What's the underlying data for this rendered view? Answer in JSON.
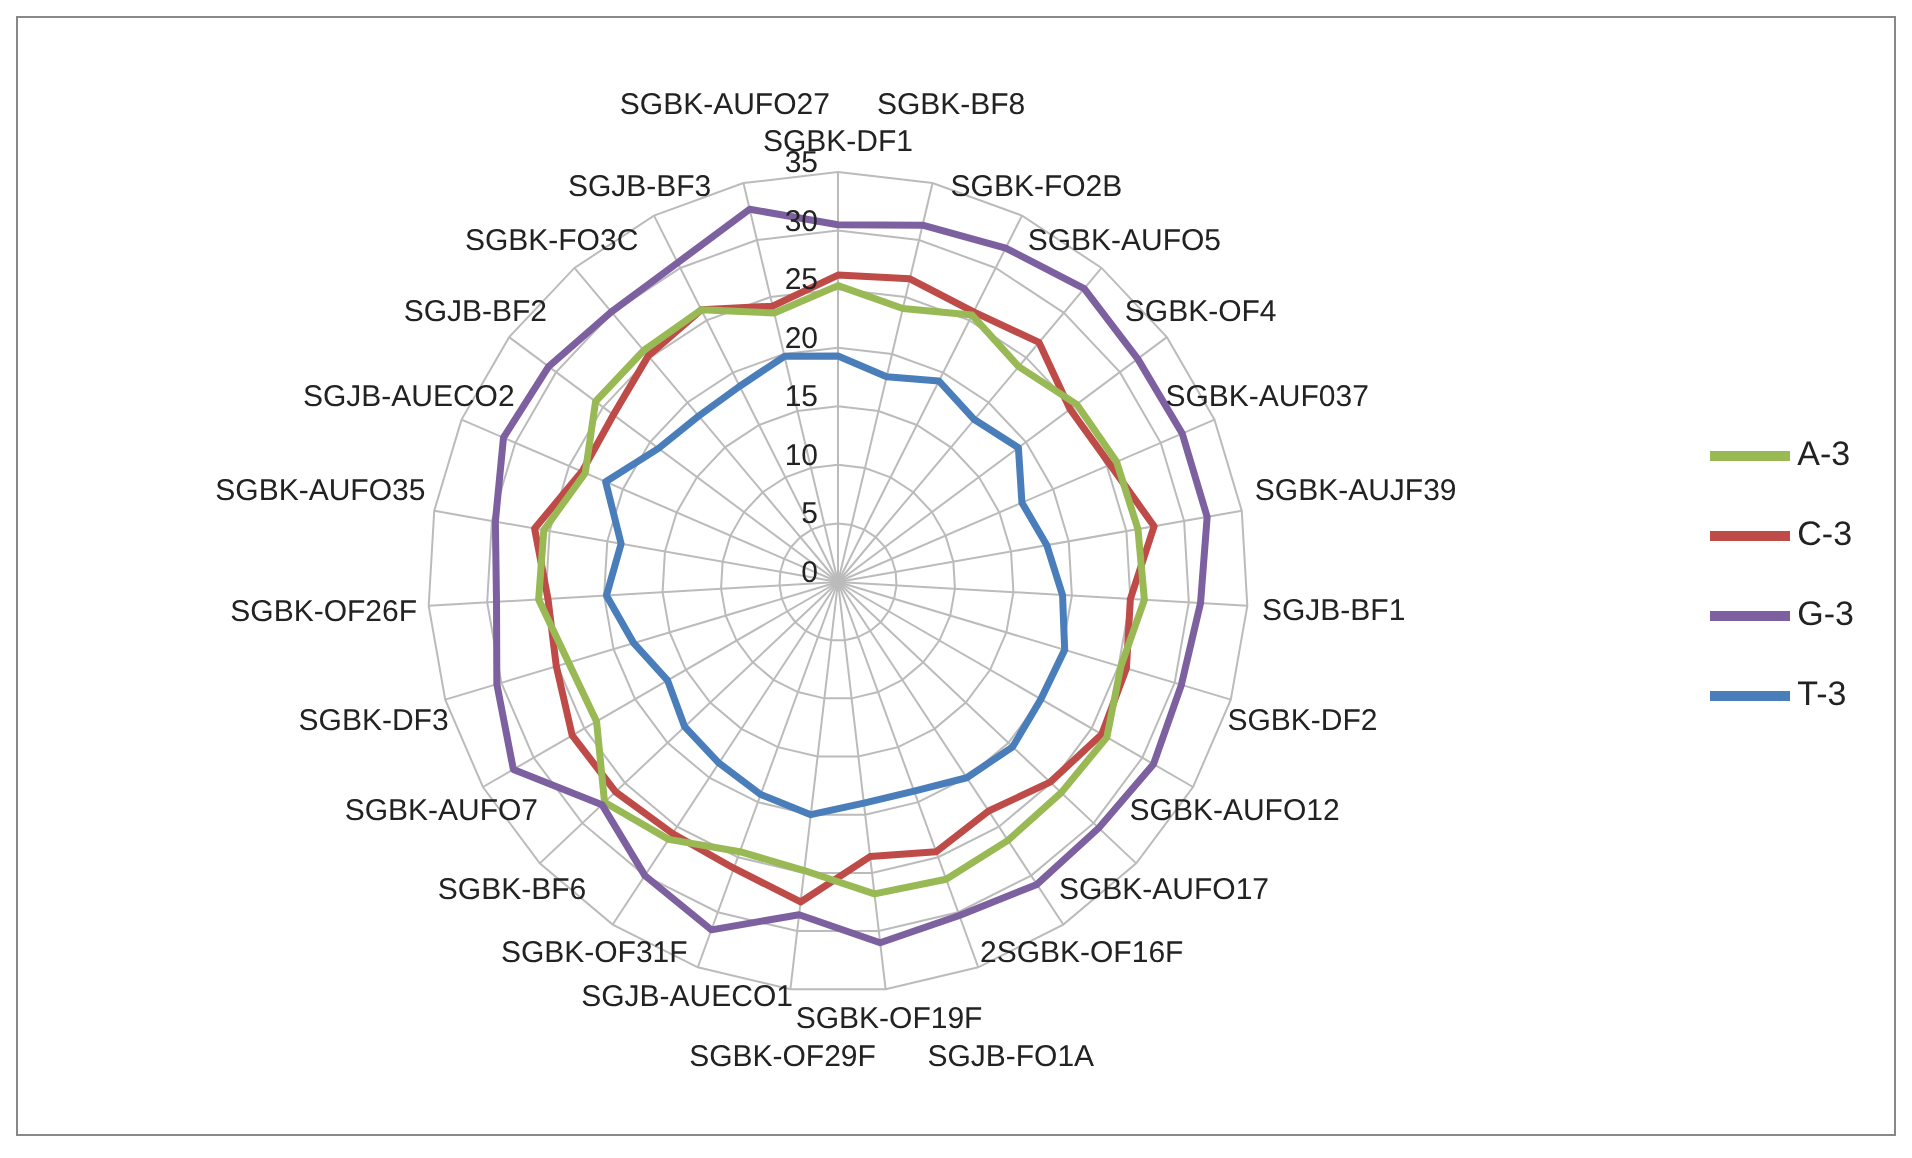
{
  "chart_data": {
    "type": "radar",
    "categories": [
      "SGBK-DF1",
      "SGBK-BF8",
      "SGBK-FO2B",
      "SGBK-AUFO5",
      "SGBK-OF4",
      "SGBK-AUF037",
      "SGBK-AUJF39",
      "SGJB-BF1",
      "SGBK-DF2",
      "SGBK-AUFO12",
      "SGBK-AUFO17",
      "2SGBK-OF16F",
      "SGJB-FO1A",
      "SGBK-OF19F",
      "SGBK-OF29F",
      "SGJB-AUECO1",
      "SGBK-OF31F",
      "SGBK-BF6",
      "SGBK-AUFO7",
      "SGBK-DF3",
      "SGBK-OF26F",
      "SGBK-AUFO35",
      "SGJB-AUECO2",
      "SGJB-BF2",
      "SGBK-FO3C",
      "SGJB-BF3",
      "SGBK-AUFO27"
    ],
    "series": [
      {
        "name": "T-3",
        "color": "#4a7ebb",
        "values": [
          19.3,
          18,
          19.2,
          18.1,
          19.2,
          17.1,
          18.1,
          19.2,
          20.2,
          20,
          20.5,
          20,
          19,
          19,
          20,
          19.3,
          18.5,
          18,
          16.8,
          18.2,
          19.8,
          18.8,
          21.6,
          19.1,
          18.5,
          18.7,
          19.8
        ]
      },
      {
        "name": "C-3",
        "color": "#be4b48",
        "values": [
          26.2,
          26.6,
          25.8,
          26.7,
          24.7,
          25.3,
          27.4,
          25,
          25.7,
          26,
          24.9,
          23.4,
          24.5,
          23.6,
          27.5,
          26,
          25.7,
          26.1,
          26.2,
          25.1,
          24.8,
          26.3,
          23.8,
          23.9,
          25.2,
          26,
          24.2
        ]
      },
      {
        "name": "A-3",
        "color": "#98b954",
        "values": [
          25.3,
          24,
          25.5,
          24,
          25.4,
          25.9,
          26,
          26.2,
          25.2,
          26.5,
          26.2,
          26.4,
          27,
          26.8,
          24.8,
          24.5,
          26.3,
          27.4,
          23.8,
          24,
          25.6,
          25.5,
          23.5,
          25.8,
          25.8,
          26,
          23.6
        ]
      },
      {
        "name": "G-3",
        "color": "#7d60a0",
        "values": [
          30.5,
          31.3,
          31.9,
          32.7,
          31.9,
          32,
          32,
          31,
          30.6,
          31.1,
          30.6,
          30.9,
          30.3,
          31,
          28.6,
          31.6,
          30,
          27.7,
          32,
          30.4,
          29.2,
          29.7,
          31.1,
          30.8,
          30.1,
          30.5,
          32.7
        ]
      }
    ],
    "ylim": [
      0,
      35
    ],
    "yticks": [
      0,
      5,
      10,
      15,
      20,
      25,
      30,
      35
    ],
    "grid": true,
    "legend": "right",
    "marker": "none"
  }
}
